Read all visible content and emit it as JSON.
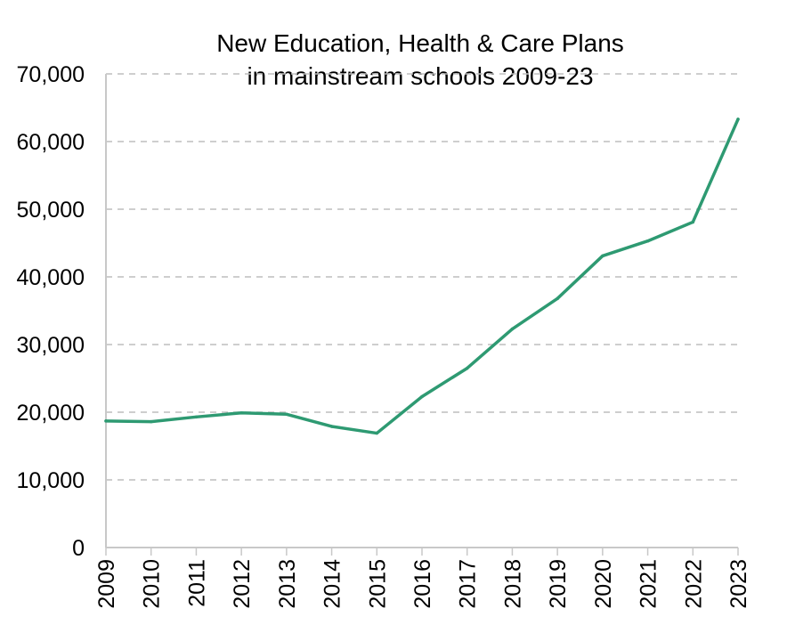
{
  "colors": {
    "line": "#2e9a72",
    "grid": "#bdbdbd",
    "axis": "#c8c8c8"
  },
  "chart_data": {
    "type": "line",
    "title_lines": [
      "New Education, Health & Care Plans",
      "in mainstream schools 2009-23"
    ],
    "xlabel": "",
    "ylabel": "",
    "ylim": [
      0,
      70000
    ],
    "yticks": [
      0,
      10000,
      20000,
      30000,
      40000,
      50000,
      60000,
      70000
    ],
    "ytick_labels": [
      "0",
      "10,000",
      "20,000",
      "30,000",
      "40,000",
      "50,000",
      "60,000",
      "70,000"
    ],
    "grid": "horizontal dashed",
    "x": [
      "2009",
      "2010",
      "2011",
      "2012",
      "2013",
      "2014",
      "2015",
      "2016",
      "2017",
      "2018",
      "2019",
      "2020",
      "2021",
      "2022",
      "2023"
    ],
    "series": [
      {
        "values": [
          18700,
          18600,
          19300,
          19900,
          19700,
          17900,
          16900,
          22300,
          26500,
          32300,
          36800,
          43100,
          45300,
          48100,
          63300
        ]
      }
    ]
  }
}
